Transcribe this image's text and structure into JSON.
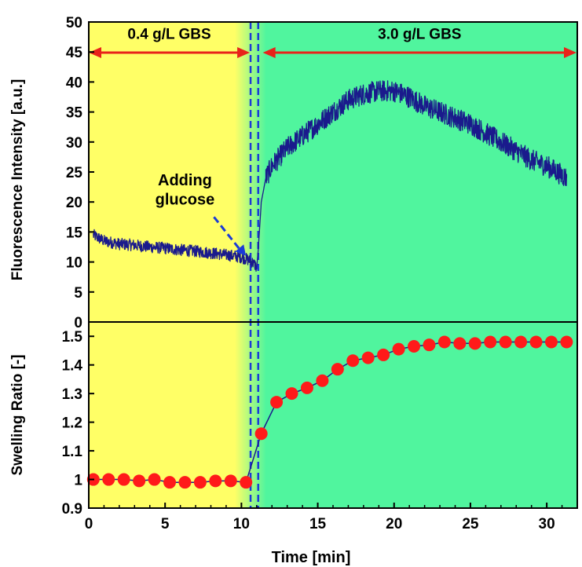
{
  "chart_data": [
    {
      "type": "line",
      "ylabel": "Fluorescence Intensity [a.u.]",
      "ylim": [
        0,
        50
      ],
      "yticks": [
        0,
        5,
        10,
        15,
        20,
        25,
        30,
        35,
        40,
        45,
        50
      ],
      "xlim": [
        0,
        32
      ],
      "grid": false,
      "regions": [
        {
          "label": "0.4 g/L GBS",
          "x_start": 0,
          "x_end": 10.5,
          "color": "#ffff66"
        },
        {
          "label": "3.0 g/L GBS",
          "x_start": 11.3,
          "x_end": 32,
          "color": "#50f59e"
        }
      ],
      "event_lines_x": [
        10.6,
        11.1
      ],
      "annotation": {
        "text_line1": "Adding",
        "text_line2": "glucose",
        "points_to": [
          10.5,
          10.5
        ]
      },
      "series": [
        {
          "color": "#1a1a8c",
          "x": [
            0.3,
            1,
            2,
            3,
            4,
            5,
            6,
            7,
            8,
            9,
            10,
            10.6,
            10.9,
            11.0,
            11.1,
            11.3,
            11.6,
            12,
            13,
            14,
            15,
            16,
            17,
            18,
            19,
            20,
            21,
            22,
            23,
            24,
            25,
            26,
            27,
            28,
            29,
            30,
            31,
            31.3
          ],
          "y": [
            14.5,
            13.5,
            13.0,
            12.8,
            12.5,
            12.3,
            12.0,
            11.8,
            11.5,
            11.2,
            10.8,
            10.2,
            9.5,
            9.0,
            12,
            20,
            24,
            26,
            29,
            31,
            33,
            35,
            37,
            38,
            38.5,
            38.5,
            37.5,
            36,
            35,
            34,
            33,
            31.5,
            30,
            28.5,
            27,
            26,
            24.5,
            24
          ],
          "noise_amplitude": 1.8
        }
      ]
    },
    {
      "type": "scatter",
      "xlabel": "Time [min]",
      "ylabel": "Swelling Ratio [-]",
      "ylim": [
        0.9,
        1.55
      ],
      "yticks": [
        0.9,
        1,
        1.1,
        1.2,
        1.3,
        1.4,
        1.5
      ],
      "xlim": [
        0,
        32
      ],
      "xticks": [
        0,
        5,
        10,
        15,
        20,
        25,
        30
      ],
      "grid": false,
      "series": [
        {
          "marker_color": "#ff1a1a",
          "line_color": "#1a1a8c",
          "x": [
            0.3,
            1.3,
            2.3,
            3.3,
            4.3,
            5.3,
            6.3,
            7.3,
            8.3,
            9.3,
            10.3,
            11.3,
            12.3,
            13.3,
            14.3,
            15.3,
            16.3,
            17.3,
            18.3,
            19.3,
            20.3,
            21.3,
            22.3,
            23.3,
            24.3,
            25.3,
            26.3,
            27.3,
            28.3,
            29.3,
            30.3,
            31.3
          ],
          "y": [
            1.0,
            1.0,
            1.0,
            0.995,
            1.0,
            0.99,
            0.99,
            0.99,
            0.995,
            0.995,
            0.99,
            1.16,
            1.27,
            1.3,
            1.32,
            1.345,
            1.385,
            1.415,
            1.425,
            1.435,
            1.455,
            1.465,
            1.47,
            1.48,
            1.475,
            1.475,
            1.48,
            1.48,
            1.48,
            1.48,
            1.48,
            1.48
          ]
        }
      ]
    }
  ]
}
